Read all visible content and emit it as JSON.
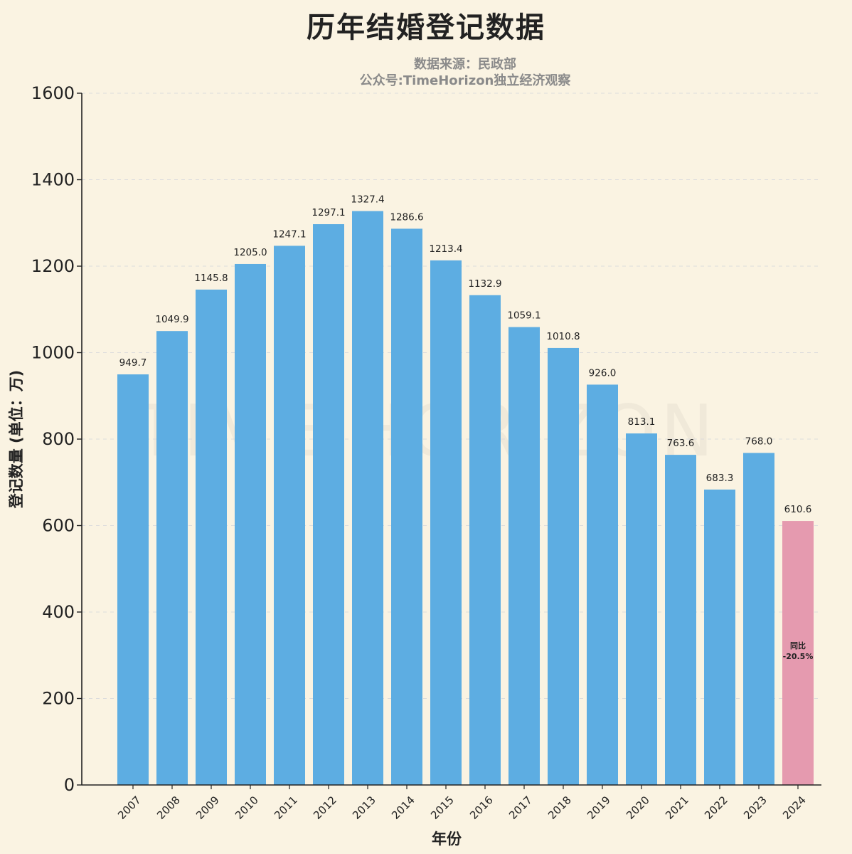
{
  "colors": {
    "background": "#faf3e2",
    "bar": "#5dade2",
    "highlight_bar": "#e59aaf",
    "text": "#222222",
    "subtitle": "#8a8a8a",
    "grid": "#dcdcdc"
  },
  "watermark": "TIME HORIZON",
  "chart_data": {
    "type": "bar",
    "title": "历年结婚登记数据",
    "subtitle_lines": [
      "数据来源：民政部",
      "公众号:TimeHorizon独立经济观察"
    ],
    "xlabel": "年份",
    "ylabel": "登记数量 (单位：万)",
    "ylim": [
      0,
      1600
    ],
    "yticks": [
      0,
      200,
      400,
      600,
      800,
      1000,
      1200,
      1400,
      1600
    ],
    "grid": "horizontal, dashed",
    "categories": [
      "2007",
      "2008",
      "2009",
      "2010",
      "2011",
      "2012",
      "2013",
      "2014",
      "2015",
      "2016",
      "2017",
      "2018",
      "2019",
      "2020",
      "2021",
      "2022",
      "2023",
      "2024"
    ],
    "values": [
      949.7,
      1049.9,
      1145.8,
      1205.0,
      1247.1,
      1297.1,
      1327.4,
      1286.6,
      1213.4,
      1132.9,
      1059.1,
      1010.8,
      926.0,
      813.1,
      763.6,
      683.3,
      768.0,
      610.6
    ],
    "value_labels": [
      "949.7",
      "1049.9",
      "1145.8",
      "1205.0",
      "1247.1",
      "1297.1",
      "1327.4",
      "1286.6",
      "1213.4",
      "1132.9",
      "1059.1",
      "1010.8",
      "926.0",
      "813.1",
      "763.6",
      "683.3",
      "768.0",
      "610.6"
    ],
    "highlight_category": "2024",
    "annotation": {
      "category": "2024",
      "lines": [
        "同比",
        "-20.5%"
      ]
    }
  }
}
